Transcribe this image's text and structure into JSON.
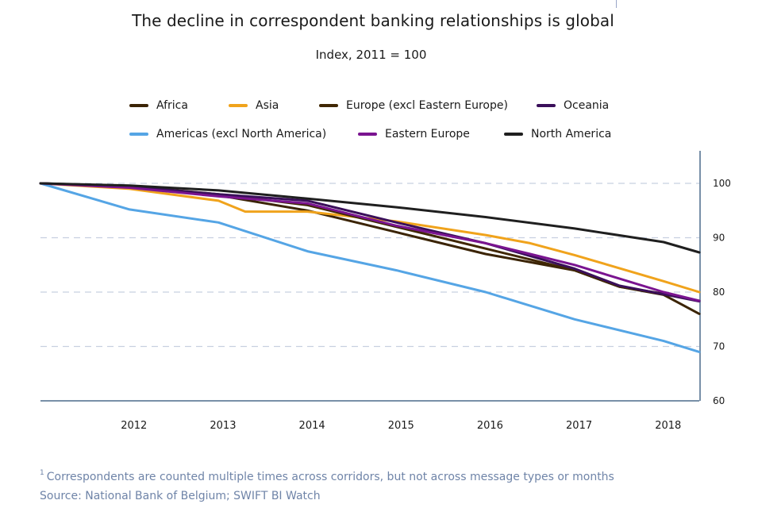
{
  "title": "The decline in correspondent banking relationships is global",
  "subtitle": "Index, 2011 = 100",
  "footnote": {
    "marker": "1",
    "text": "Correspondents are counted multiple times across corridors, but not across message types or months"
  },
  "source": "Source: National Bank of Belgium; SWIFT BI Watch",
  "chart_data": {
    "type": "line",
    "x_ticks": [
      "2012",
      "2013",
      "2014",
      "2015",
      "2016",
      "2017",
      "2018"
    ],
    "xlim": [
      2011,
      2018.4
    ],
    "ylim": [
      60,
      105
    ],
    "y_ticks": [
      60,
      70,
      80,
      90,
      100
    ],
    "y_axis_position": "right",
    "grid": "horizontal dashed",
    "legend_position": "top",
    "series": [
      {
        "name": "Africa",
        "color": "#3b2405",
        "x": [
          2011,
          2012,
          2013,
          2014,
          2015,
          2016,
          2017,
          2017.5,
          2018,
          2018.4
        ],
        "y": [
          100,
          99.3,
          97.8,
          95,
          91,
          87,
          84,
          81,
          79.5,
          76
        ]
      },
      {
        "name": "Asia",
        "color": "#f0a31c",
        "x": [
          2011,
          2012,
          2013,
          2013.3,
          2014,
          2015,
          2016,
          2016.5,
          2017,
          2018,
          2018.4
        ],
        "y": [
          100,
          99,
          96.8,
          94.8,
          94.8,
          93,
          90.5,
          89,
          86.8,
          82,
          80
        ]
      },
      {
        "name": "Europe (excl Eastern Europe)",
        "color": "#402703",
        "x": [
          2011,
          2012,
          2013,
          2014,
          2015,
          2016,
          2017,
          2017.5,
          2018,
          2018.4
        ],
        "y": [
          100,
          99.5,
          98,
          96,
          92,
          88,
          84,
          81,
          79.7,
          78.4
        ]
      },
      {
        "name": "Oceania",
        "color": "#3a0f5a",
        "x": [
          2011,
          2012,
          2013,
          2014,
          2015,
          2016,
          2017,
          2017.5,
          2018,
          2018.4
        ],
        "y": [
          100,
          99.4,
          98,
          96.8,
          92.8,
          89,
          84.3,
          81.2,
          79.6,
          78.3
        ]
      },
      {
        "name": "Americas (excl North America)",
        "color": "#55a5e5",
        "x": [
          2011,
          2012,
          2013,
          2014,
          2015,
          2016,
          2017,
          2018,
          2018.4
        ],
        "y": [
          100,
          95.2,
          92.8,
          87.5,
          84,
          80,
          75,
          71,
          69
        ]
      },
      {
        "name": "Eastern Europe",
        "color": "#7a1490",
        "x": [
          2011,
          2012,
          2013,
          2014,
          2015,
          2016,
          2016.5,
          2017,
          2017.5,
          2018,
          2018.4
        ],
        "y": [
          100,
          99.2,
          97.6,
          96.3,
          92.2,
          89,
          87,
          85,
          82.5,
          80,
          78.4
        ]
      },
      {
        "name": "North America",
        "color": "#1f1f1f",
        "x": [
          2011,
          2012,
          2013,
          2014,
          2015,
          2016,
          2017,
          2018,
          2018.4
        ],
        "y": [
          100,
          99.6,
          98.7,
          97.2,
          95.6,
          93.8,
          91.7,
          89.2,
          87.3
        ]
      }
    ]
  }
}
